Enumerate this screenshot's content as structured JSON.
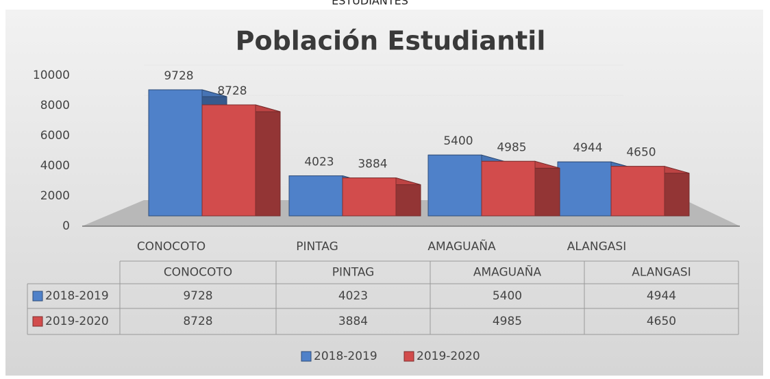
{
  "caption": "ESTUDIANTES",
  "chart_data": {
    "type": "bar3d",
    "title": "Población Estudiantil",
    "categories": [
      "CONOCOTO",
      "PINTAG",
      "AMAGUAÑA",
      "ALANGASI"
    ],
    "series": [
      {
        "name": "2018-2019",
        "color": "#4f81c9",
        "values": [
          9728,
          4023,
          5400,
          4944
        ]
      },
      {
        "name": "2019-2020",
        "color": "#d24c4c",
        "values": [
          8728,
          3884,
          4985,
          4650
        ]
      }
    ],
    "ylim": [
      0,
      10000
    ],
    "yticks": [
      0,
      2000,
      4000,
      6000,
      8000,
      10000
    ],
    "grid": true,
    "data_table": true,
    "legend": "bottom"
  }
}
